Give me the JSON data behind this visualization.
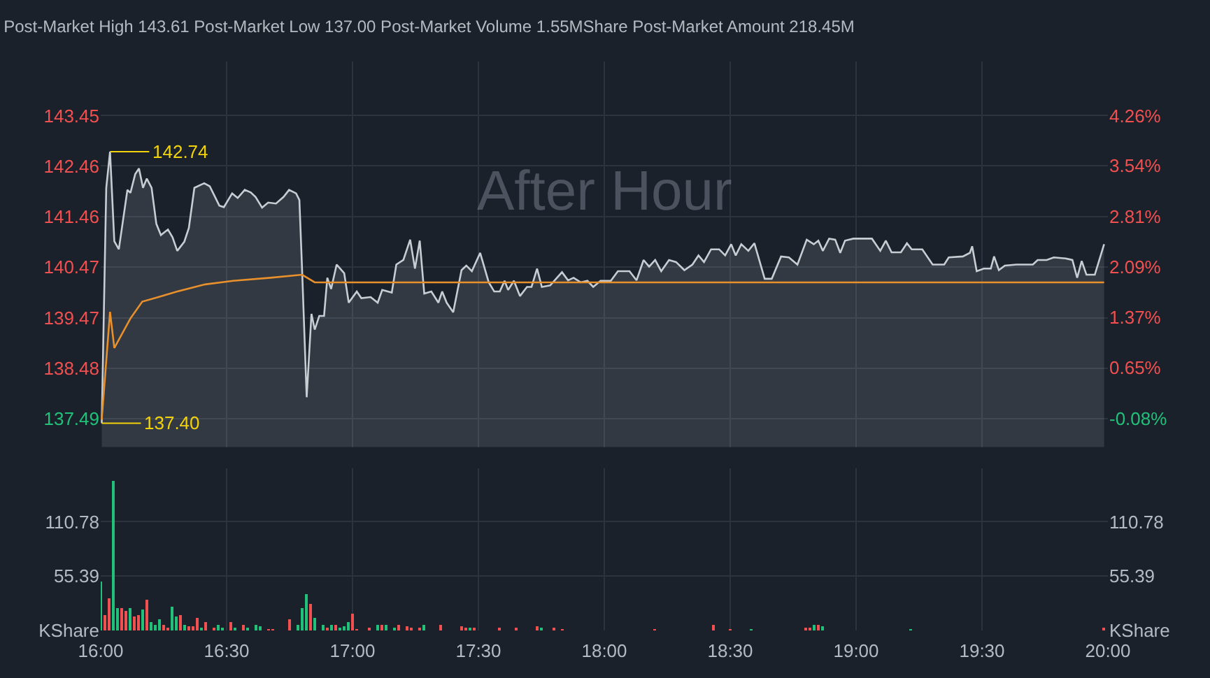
{
  "chart_data": [
    {
      "type": "line",
      "title": "Post-Market High 143.61 Post-Market Low 137.00 Post-Market Volume 1.55MShare Post-Market Amount 218.45M",
      "series": [
        {
          "type": "area",
          "color": "#c8cdd4",
          "x": [
            16.004,
            16.022,
            16.037,
            16.054,
            16.072,
            16.106,
            16.118,
            16.137,
            16.152,
            16.168,
            16.183,
            16.202,
            16.221,
            16.239,
            16.267,
            16.285,
            16.304,
            16.332,
            16.35,
            16.372,
            16.411,
            16.433,
            16.471,
            16.489,
            16.522,
            16.544,
            16.572,
            16.596,
            16.615,
            16.641,
            16.665,
            16.696,
            16.726,
            16.748,
            16.776,
            16.789,
            16.8,
            16.818,
            16.837,
            16.85,
            16.868,
            16.887,
            16.9,
            16.915,
            16.937,
            16.967,
            16.985,
            17.017,
            17.035,
            17.072,
            17.1,
            17.118,
            17.156,
            17.174,
            17.202,
            17.229,
            17.248,
            17.267,
            17.285,
            17.313,
            17.341,
            17.356,
            17.374,
            17.4,
            17.433,
            17.452,
            17.474,
            17.507,
            17.541,
            17.563,
            17.585,
            17.604,
            17.618,
            17.641,
            17.665,
            17.693,
            17.711,
            17.733,
            17.752,
            17.785,
            17.832,
            17.856,
            17.878,
            17.906,
            17.933,
            17.956,
            17.985,
            18.026,
            18.054,
            18.1,
            18.128,
            18.156,
            18.178,
            18.202,
            18.226,
            18.257,
            18.285,
            18.318,
            18.35,
            18.374,
            18.396,
            18.424,
            18.456,
            18.48,
            18.504,
            18.522,
            18.544,
            18.572,
            18.596,
            18.637,
            18.665,
            18.702,
            18.733,
            18.767,
            18.804,
            18.832,
            18.85,
            18.868,
            18.893,
            18.917,
            18.937,
            18.956,
            18.989,
            19.063,
            19.096,
            19.118,
            19.141,
            19.178,
            19.202,
            19.221,
            19.263,
            19.304,
            19.35,
            19.368,
            19.424,
            19.452,
            19.461,
            19.479,
            19.507,
            19.535,
            19.548,
            19.567,
            19.591,
            19.637,
            19.702,
            19.721,
            19.757,
            19.785,
            19.832,
            19.859,
            19.878,
            19.896,
            19.915,
            19.948,
            19.985
          ],
          "values": [
            137.4,
            142.03,
            142.74,
            140.98,
            140.82,
            141.99,
            141.93,
            142.3,
            142.41,
            142.03,
            142.21,
            142.03,
            141.32,
            141.1,
            141.21,
            141.06,
            140.79,
            140.97,
            141.24,
            142.03,
            142.12,
            142.06,
            141.68,
            141.65,
            141.92,
            141.83,
            141.99,
            141.94,
            141.85,
            141.64,
            141.74,
            141.72,
            141.85,
            141.99,
            141.92,
            141.79,
            140.39,
            137.91,
            139.55,
            139.24,
            139.51,
            139.51,
            140.26,
            140.04,
            140.52,
            140.35,
            139.77,
            139.99,
            139.86,
            139.88,
            139.77,
            140.02,
            139.97,
            140.52,
            140.61,
            141.01,
            140.44,
            140.99,
            139.95,
            139.99,
            139.77,
            139.99,
            139.77,
            139.58,
            140.41,
            140.5,
            140.39,
            140.75,
            140.17,
            139.99,
            139.99,
            140.2,
            140.02,
            140.2,
            139.9,
            140.08,
            140.08,
            140.44,
            140.08,
            140.11,
            140.37,
            140.21,
            140.26,
            140.17,
            140.2,
            140.08,
            140.2,
            140.2,
            140.39,
            140.39,
            140.21,
            140.61,
            140.48,
            140.61,
            140.39,
            140.61,
            140.57,
            140.41,
            140.52,
            140.7,
            140.57,
            140.82,
            140.82,
            140.7,
            140.92,
            140.7,
            140.92,
            140.79,
            140.94,
            140.24,
            140.24,
            140.68,
            140.66,
            140.52,
            141.01,
            140.92,
            140.99,
            140.79,
            141.03,
            141.01,
            140.75,
            140.99,
            141.03,
            141.03,
            140.79,
            140.99,
            140.76,
            140.76,
            140.94,
            140.82,
            140.82,
            140.52,
            140.52,
            140.66,
            140.68,
            140.75,
            140.88,
            140.39,
            140.44,
            140.44,
            140.68,
            140.41,
            140.5,
            140.52,
            140.52,
            140.61,
            140.61,
            140.66,
            140.64,
            140.61,
            140.26,
            140.59,
            140.32,
            140.32,
            140.92
          ]
        },
        {
          "type": "line",
          "color": "#e8902c",
          "x": [
            16.004,
            16.037,
            16.054,
            16.118,
            16.165,
            16.229,
            16.304,
            16.415,
            16.526,
            16.674,
            16.8,
            16.85,
            17.5,
            18.5,
            19.985
          ],
          "values": [
            137.47,
            139.59,
            138.88,
            139.46,
            139.79,
            139.88,
            139.99,
            140.13,
            140.2,
            140.26,
            140.32,
            140.17,
            140.17,
            140.17,
            140.17
          ]
        }
      ],
      "xlim": [
        16,
        20
      ],
      "xticks": [
        16,
        16.5,
        17,
        17.5,
        18,
        18.5,
        19,
        19.5,
        20
      ],
      "ylim": [
        136.93,
        144.51
      ],
      "yticks": [
        137.49,
        138.48,
        139.47,
        140.47,
        141.46,
        142.46,
        143.45
      ],
      "y2lim": [
        -0.488,
        5.032
      ],
      "y2ticks": [
        {
          "value": -0.08,
          "label": "-0.08%"
        },
        {
          "value": 0.65,
          "label": "0.65%"
        },
        {
          "value": 1.37,
          "label": "1.37%"
        },
        {
          "value": 2.09,
          "label": "2.09%"
        },
        {
          "value": 2.81,
          "label": "2.81%"
        },
        {
          "value": 3.54,
          "label": "3.54%"
        },
        {
          "value": 4.26,
          "label": "4.26%"
        }
      ],
      "tick_labels": "y",
      "grid": true,
      "marker": "none",
      "annotations": [
        {
          "text": "142.74",
          "x": 16.037,
          "y": 142.74
        },
        {
          "text": "137.40",
          "x": 16.004,
          "y": 137.4
        },
        "After Hour"
      ]
    },
    {
      "type": "bar",
      "x": [
        16,
        16.017,
        16.033,
        16.05,
        16.067,
        16.083,
        16.1,
        16.117,
        16.133,
        16.15,
        16.167,
        16.183,
        16.2,
        16.217,
        16.233,
        16.25,
        16.267,
        16.283,
        16.3,
        16.317,
        16.333,
        16.35,
        16.367,
        16.383,
        16.4,
        16.417,
        16.45,
        16.467,
        16.483,
        16.517,
        16.533,
        16.567,
        16.583,
        16.617,
        16.633,
        16.667,
        16.683,
        16.75,
        16.783,
        16.8,
        16.817,
        16.833,
        16.85,
        16.883,
        16.9,
        16.917,
        16.933,
        16.95,
        16.967,
        16.983,
        17,
        17.017,
        17.067,
        17.1,
        17.117,
        17.133,
        17.167,
        17.183,
        17.217,
        17.233,
        17.267,
        17.283,
        17.35,
        17.433,
        17.45,
        17.467,
        17.483,
        17.583,
        17.65,
        17.733,
        17.75,
        17.8,
        17.833,
        18.2,
        18.433,
        18.5,
        18.583,
        18.8,
        18.817,
        18.833,
        18.85,
        18.867,
        19.217,
        19.983
      ],
      "values": [
        50,
        15,
        33,
        152,
        23,
        22,
        20,
        22,
        14,
        15,
        21,
        31,
        8,
        5,
        11,
        5,
        3,
        24,
        14,
        15,
        5,
        4,
        4,
        12,
        2,
        8,
        2,
        6,
        3,
        9,
        3,
        5,
        3,
        5,
        4,
        1,
        1,
        11,
        5,
        23,
        37,
        27,
        13,
        6,
        3,
        5,
        6,
        3,
        4,
        8,
        17,
        1,
        3,
        5,
        6,
        6,
        3,
        6,
        4,
        3,
        2,
        5,
        6,
        4,
        2,
        3,
        2,
        3,
        2,
        4,
        2,
        2,
        1,
        1,
        5,
        1,
        1,
        2,
        3,
        6,
        6,
        4,
        1,
        2
      ],
      "colors": [
        "#21c17a",
        "#f0504f",
        "#f0504f",
        "#21c17a",
        "#21c17a",
        "#f0504f",
        "#f0504f",
        "#21c17a",
        "#f0504f",
        "#f0504f",
        "#21c17a",
        "#f0504f",
        "#21c17a",
        "#21c17a",
        "#21c17a",
        "#f0504f",
        "#f0504f",
        "#21c17a",
        "#21c17a",
        "#f0504f",
        "#21c17a",
        "#f0504f",
        "#f0504f",
        "#f0504f",
        "#21c17a",
        "#f0504f",
        "#f0504f",
        "#21c17a",
        "#21c17a",
        "#f0504f",
        "#21c17a",
        "#f0504f",
        "#21c17a",
        "#21c17a",
        "#21c17a",
        "#f0504f",
        "#f0504f",
        "#f0504f",
        "#21c17a",
        "#21c17a",
        "#21c17a",
        "#f0504f",
        "#21c17a",
        "#21c17a",
        "#f0504f",
        "#21c17a",
        "#f0504f",
        "#21c17a",
        "#21c17a",
        "#21c17a",
        "#f0504f",
        "#f0504f",
        "#f0504f",
        "#21c17a",
        "#f0504f",
        "#21c17a",
        "#21c17a",
        "#f0504f",
        "#f0504f",
        "#f0504f",
        "#f0504f",
        "#21c17a",
        "#f0504f",
        "#f0504f",
        "#f0504f",
        "#21c17a",
        "#f0504f",
        "#f0504f",
        "#f0504f",
        "#f0504f",
        "#21c17a",
        "#f0504f",
        "#f0504f",
        "#f0504f",
        "#f0504f",
        "#f0504f",
        "#21c17a",
        "#f0504f",
        "#f0504f",
        "#21c17a",
        "#f0504f",
        "#21c17a",
        "#21c17a",
        "#f0504f"
      ],
      "xlim": [
        16,
        20
      ],
      "xticks": [
        {
          "value": 16,
          "label": "16:00"
        },
        {
          "value": 16.5,
          "label": "16:30"
        },
        {
          "value": 17,
          "label": "17:00"
        },
        {
          "value": 17.5,
          "label": "17:30"
        },
        {
          "value": 18,
          "label": "18:00"
        },
        {
          "value": 18.5,
          "label": "18:30"
        },
        {
          "value": 19,
          "label": "19:00"
        },
        {
          "value": 19.5,
          "label": "19:30"
        },
        {
          "value": 20,
          "label": "20:00"
        }
      ],
      "ylim": [
        0,
        165
      ],
      "yticks": [
        {
          "value": 0,
          "label": "KShare"
        },
        55.39,
        110.78
      ],
      "y2lim": [
        0,
        165
      ],
      "y2ticks": [
        {
          "value": 0,
          "label": "KShare"
        },
        55.39,
        110.78
      ],
      "grid": true
    }
  ]
}
